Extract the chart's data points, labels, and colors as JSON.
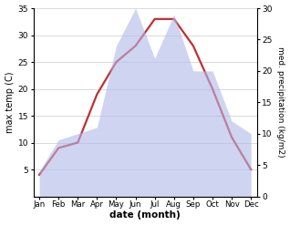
{
  "months": [
    "Jan",
    "Feb",
    "Mar",
    "Apr",
    "May",
    "Jun",
    "Jul",
    "Aug",
    "Sep",
    "Oct",
    "Nov",
    "Dec"
  ],
  "temp_max": [
    4,
    9,
    10,
    19,
    25,
    28,
    33,
    33,
    28,
    20,
    11,
    5
  ],
  "precipitation": [
    4,
    9,
    10,
    11,
    24,
    30,
    22,
    29,
    20,
    20,
    12,
    10
  ],
  "temp_ylim": [
    0,
    35
  ],
  "precip_ylim": [
    0,
    30
  ],
  "temp_yticks": [
    5,
    10,
    15,
    20,
    25,
    30,
    35
  ],
  "precip_yticks": [
    0,
    5,
    10,
    15,
    20,
    25,
    30
  ],
  "fill_color": "#b0b8e8",
  "fill_alpha": 0.6,
  "line_color": "#c03030",
  "line_width": 1.6,
  "xlabel": "date (month)",
  "ylabel_left": "max temp (C)",
  "ylabel_right": "med. precipitation (kg/m2)",
  "background_color": "#ffffff",
  "grid_color": "#cccccc"
}
